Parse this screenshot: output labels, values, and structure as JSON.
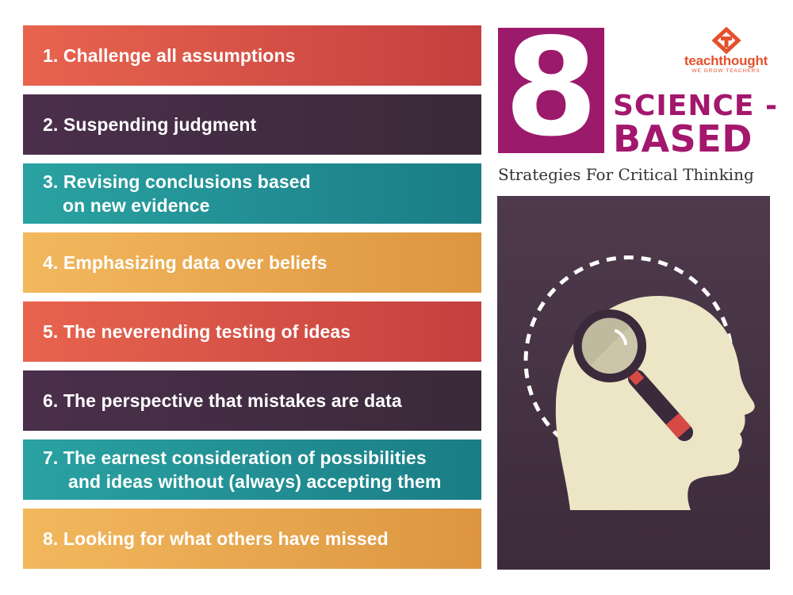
{
  "strategies": [
    {
      "line1": "1. Challenge all assumptions",
      "line2": ""
    },
    {
      "line1": "2. Suspending judgment",
      "line2": ""
    },
    {
      "line1": "3. Revising conclusions based",
      "line2": "on new evidence"
    },
    {
      "line1": "4. Emphasizing data over beliefs",
      "line2": ""
    },
    {
      "line1": "5. The neverending testing of ideas",
      "line2": ""
    },
    {
      "line1": "6. The perspective that mistakes are data",
      "line2": ""
    },
    {
      "line1": "7. The earnest consideration of possibilities",
      "line2": "and ideas without (always) accepting them"
    },
    {
      "line1": "8. Looking for what others have missed",
      "line2": ""
    }
  ],
  "heading": {
    "number": "8",
    "line1": "SCIENCE -",
    "line2": "BASED",
    "subtitle": "Strategies For Critical Thinking"
  },
  "brand": {
    "name": "teachthought",
    "tagline": "WE GROW TEACHERS",
    "icon": "teachthought-logo-icon"
  },
  "illustration": {
    "icon": "head-with-magnifying-glass-icon"
  },
  "colors": {
    "red": "#d4504a",
    "purple": "#43304a",
    "teal": "#1f8e92",
    "gold": "#e9a84f",
    "magenta": "#9c1a6b",
    "brand_orange": "#e4512d",
    "panel": "#45344a",
    "head": "#ece6c6"
  }
}
